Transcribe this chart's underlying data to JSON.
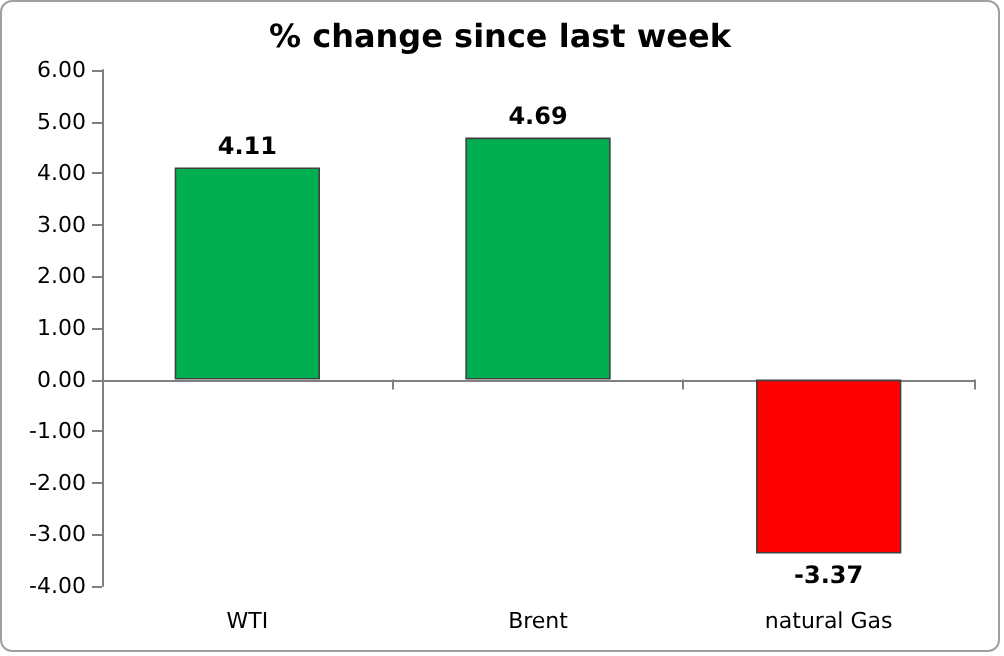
{
  "chart_data": {
    "type": "bar",
    "title": "% change since last week",
    "categories": [
      "WTI",
      "Brent",
      "natural Gas"
    ],
    "values": [
      4.11,
      4.69,
      -3.37
    ],
    "colors": [
      "#00b050",
      "#00b050",
      "#ff0000"
    ],
    "ylim": [
      -4,
      6
    ],
    "yticks": [
      {
        "value": -4,
        "label": "-4.00"
      },
      {
        "value": -3,
        "label": "-3.00"
      },
      {
        "value": -2,
        "label": "-2.00"
      },
      {
        "value": -1,
        "label": "-1.00"
      },
      {
        "value": 0,
        "label": "0.00"
      },
      {
        "value": 1,
        "label": "1.00"
      },
      {
        "value": 2,
        "label": "2.00"
      },
      {
        "value": 3,
        "label": "3.00"
      },
      {
        "value": 4,
        "label": "4.00"
      },
      {
        "value": 5,
        "label": "5.00"
      },
      {
        "value": 6,
        "label": "6.00"
      }
    ],
    "data_labels": true
  }
}
